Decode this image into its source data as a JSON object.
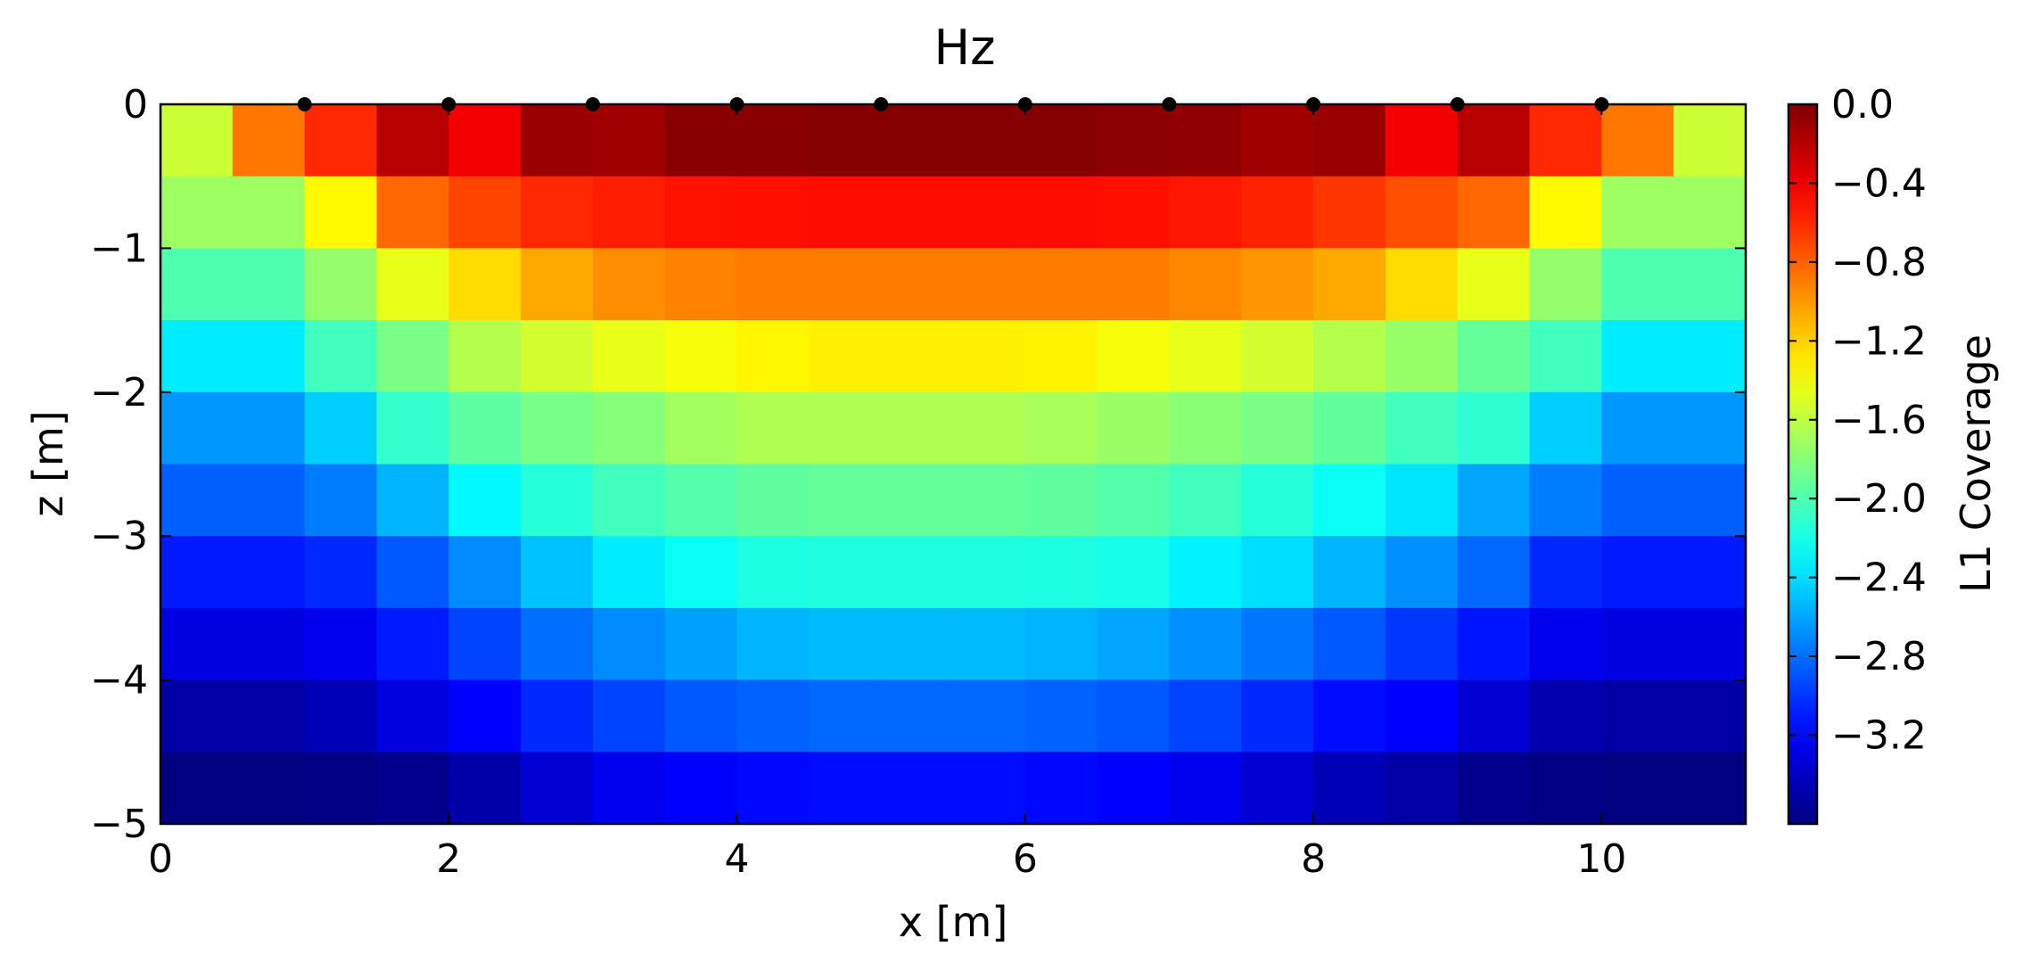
{
  "chart_data": {
    "type": "heatmap",
    "title": "Hz",
    "xlabel": "x [m]",
    "ylabel": "z [m]",
    "xlim": [
      0,
      11
    ],
    "ylim": [
      -5,
      0
    ],
    "x_ticks": [
      0,
      2,
      4,
      6,
      8,
      10
    ],
    "y_ticks": [
      0,
      -1,
      -2,
      -3,
      -4,
      -5
    ],
    "x_tick_labels": [
      "0",
      "2",
      "4",
      "6",
      "8",
      "10"
    ],
    "y_tick_labels": [
      "0",
      "−1",
      "−2",
      "−3",
      "−4",
      "−5"
    ],
    "cell_size": 0.5,
    "x_edges": [
      0,
      0.5,
      1,
      1.5,
      2,
      2.5,
      3,
      3.5,
      4,
      4.5,
      5,
      5.5,
      6,
      6.5,
      7,
      7.5,
      8,
      8.5,
      9,
      9.5,
      10,
      10.5,
      11
    ],
    "z_edges": [
      0,
      -0.5,
      -1,
      -1.5,
      -2,
      -2.5,
      -3,
      -3.5,
      -4,
      -4.5,
      -5
    ],
    "values": [
      [
        -1.55,
        -0.88,
        -0.6,
        -0.2,
        -0.42,
        -0.1,
        -0.12,
        -0.03,
        -0.03,
        -0.02,
        -0.02,
        -0.02,
        -0.02,
        -0.04,
        -0.06,
        -0.12,
        -0.09,
        -0.42,
        -0.2,
        -0.6,
        -0.88,
        -1.55
      ],
      [
        -1.72,
        -1.72,
        -1.35,
        -0.83,
        -0.7,
        -0.6,
        -0.56,
        -0.52,
        -0.51,
        -0.5,
        -0.5,
        -0.5,
        -0.5,
        -0.51,
        -0.54,
        -0.58,
        -0.65,
        -0.74,
        -0.83,
        -1.35,
        -1.72,
        -1.72
      ],
      [
        -2.0,
        -2.0,
        -1.75,
        -1.45,
        -1.24,
        -1.06,
        -0.96,
        -0.92,
        -0.9,
        -0.9,
        -0.9,
        -0.9,
        -0.9,
        -0.9,
        -0.94,
        -0.99,
        -1.06,
        -1.24,
        -1.45,
        -1.75,
        -2.0,
        -2.0
      ],
      [
        -2.35,
        -2.35,
        -2.05,
        -1.85,
        -1.64,
        -1.53,
        -1.45,
        -1.4,
        -1.34,
        -1.32,
        -1.32,
        -1.32,
        -1.33,
        -1.4,
        -1.45,
        -1.53,
        -1.64,
        -1.74,
        -1.92,
        -2.05,
        -2.35,
        -2.35
      ],
      [
        -2.65,
        -2.65,
        -2.45,
        -2.1,
        -1.95,
        -1.86,
        -1.8,
        -1.7,
        -1.66,
        -1.66,
        -1.66,
        -1.66,
        -1.68,
        -1.73,
        -1.79,
        -1.85,
        -1.93,
        -2.05,
        -2.12,
        -2.45,
        -2.65,
        -2.65
      ],
      [
        -2.85,
        -2.85,
        -2.75,
        -2.55,
        -2.3,
        -2.15,
        -2.05,
        -1.98,
        -1.94,
        -1.92,
        -1.92,
        -1.92,
        -1.94,
        -1.98,
        -2.05,
        -2.15,
        -2.25,
        -2.37,
        -2.6,
        -2.75,
        -2.85,
        -2.85
      ],
      [
        -3.1,
        -3.1,
        -3.05,
        -2.88,
        -2.7,
        -2.5,
        -2.35,
        -2.25,
        -2.18,
        -2.17,
        -2.17,
        -2.17,
        -2.18,
        -2.2,
        -2.32,
        -2.4,
        -2.55,
        -2.68,
        -2.82,
        -3.05,
        -3.1,
        -3.1
      ],
      [
        -3.3,
        -3.3,
        -3.25,
        -3.1,
        -2.95,
        -2.8,
        -2.7,
        -2.62,
        -2.55,
        -2.52,
        -2.52,
        -2.52,
        -2.55,
        -2.6,
        -2.68,
        -2.77,
        -2.88,
        -3.0,
        -3.12,
        -3.25,
        -3.3,
        -3.3
      ],
      [
        -3.52,
        -3.52,
        -3.45,
        -3.3,
        -3.2,
        -3.05,
        -2.95,
        -2.88,
        -2.84,
        -2.82,
        -2.82,
        -2.82,
        -2.84,
        -2.88,
        -2.95,
        -3.05,
        -3.15,
        -3.2,
        -3.35,
        -3.48,
        -3.52,
        -3.52
      ],
      [
        -3.65,
        -3.65,
        -3.63,
        -3.6,
        -3.5,
        -3.35,
        -3.25,
        -3.2,
        -3.17,
        -3.15,
        -3.15,
        -3.15,
        -3.17,
        -3.2,
        -3.25,
        -3.35,
        -3.45,
        -3.52,
        -3.6,
        -3.63,
        -3.65,
        -3.65
      ]
    ],
    "markers": {
      "x": [
        1,
        2,
        3,
        4,
        5,
        6,
        7,
        8,
        9,
        10
      ],
      "z": [
        0,
        0,
        0,
        0,
        0,
        0,
        0,
        0,
        0,
        0
      ],
      "color": "#000000"
    },
    "colorbar": {
      "label": "L1 Coverage",
      "vmin": -3.65,
      "vmax": 0.0,
      "colormap": "jet",
      "ticks": [
        0.0,
        -0.4,
        -0.8,
        -1.2,
        -1.6,
        -2.0,
        -2.4,
        -2.8,
        -3.2
      ],
      "tick_labels": [
        "0.0",
        "−0.4",
        "−0.8",
        "−1.2",
        "−1.6",
        "−2.0",
        "−2.4",
        "−2.8",
        "−3.2"
      ]
    }
  }
}
